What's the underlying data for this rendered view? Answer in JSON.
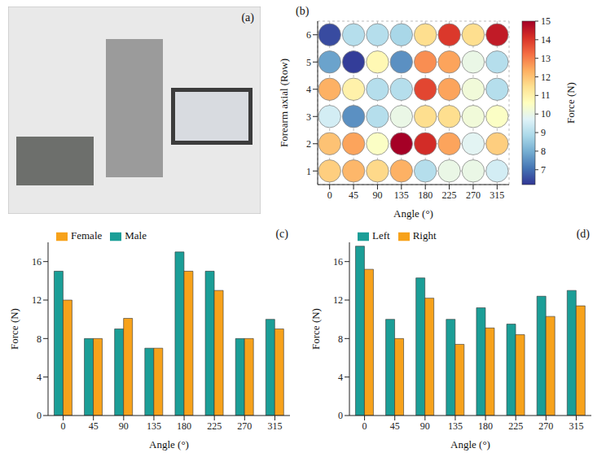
{
  "chart_data": [
    {
      "type": "image",
      "title": "(a)"
    },
    {
      "type": "heatmap",
      "title": "(b)",
      "x_label": "Angle (°)",
      "y_label": "Forearm axial (Row)",
      "x": [
        0,
        45,
        90,
        135,
        180,
        225,
        270,
        315
      ],
      "y": [
        1,
        2,
        3,
        4,
        5,
        6
      ],
      "xlim": [
        -22.5,
        337.5
      ],
      "xticks": [
        0,
        45,
        90,
        135,
        180,
        225,
        270,
        315
      ],
      "ylim": [
        0.5,
        6.5
      ],
      "yticks": [
        1,
        2,
        3,
        4,
        5,
        6
      ],
      "grid": true,
      "marker": "circle",
      "cells": [
        [
          11.8,
          12.2,
          11.6,
          12.3,
          9.0,
          10.0,
          10.0,
          9.5
        ],
        [
          12.0,
          12.5,
          10.5,
          15.0,
          14.2,
          12.5,
          9.8,
          11.8
        ],
        [
          9.5,
          7.5,
          9.0,
          10.0,
          11.5,
          11.5,
          10.2,
          10.5
        ],
        [
          12.3,
          11.0,
          9.0,
          9.0,
          13.8,
          12.5,
          10.2,
          9.0
        ],
        [
          7.8,
          6.3,
          10.8,
          7.5,
          12.8,
          12.5,
          10.0,
          9.0
        ],
        [
          6.5,
          9.0,
          9.0,
          8.8,
          11.5,
          14.0,
          11.5,
          14.5
        ]
      ],
      "colorbar": {
        "label": "Force (N)",
        "range": [
          6.2,
          15
        ],
        "ticks": [
          7,
          8,
          9,
          10,
          11,
          12,
          13,
          14,
          15
        ]
      }
    },
    {
      "type": "bar",
      "title": "(c)",
      "x_label": "Angle (°)",
      "y_label": "Force (N)",
      "categories": [
        0,
        45,
        90,
        135,
        180,
        225,
        270,
        315
      ],
      "series": [
        {
          "name": "Male",
          "color": "#1b9e97",
          "values": [
            15,
            8,
            9,
            7,
            17,
            15,
            8,
            10
          ]
        },
        {
          "name": "Female",
          "color": "#f7a21b",
          "values": [
            12,
            8,
            10.1,
            7,
            15,
            13,
            8,
            9
          ]
        }
      ],
      "ylim": [
        0,
        18
      ],
      "yticks": [
        0,
        4,
        8,
        12,
        16
      ],
      "legend": "top"
    },
    {
      "type": "bar",
      "title": "(d)",
      "x_label": "Angle (°)",
      "y_label": "Force (N)",
      "categories": [
        0,
        45,
        90,
        135,
        180,
        225,
        270,
        315
      ],
      "series": [
        {
          "name": "Left",
          "color": "#1b9e97",
          "values": [
            17.6,
            10,
            14.3,
            10,
            11.2,
            9.5,
            12.4,
            13
          ]
        },
        {
          "name": "Right",
          "color": "#f7a21b",
          "values": [
            15.2,
            8,
            12.2,
            7.4,
            9.1,
            8.4,
            10.3,
            11.4
          ]
        }
      ],
      "ylim": [
        0,
        18
      ],
      "yticks": [
        0,
        4,
        8,
        12,
        16
      ],
      "legend": "top"
    }
  ]
}
